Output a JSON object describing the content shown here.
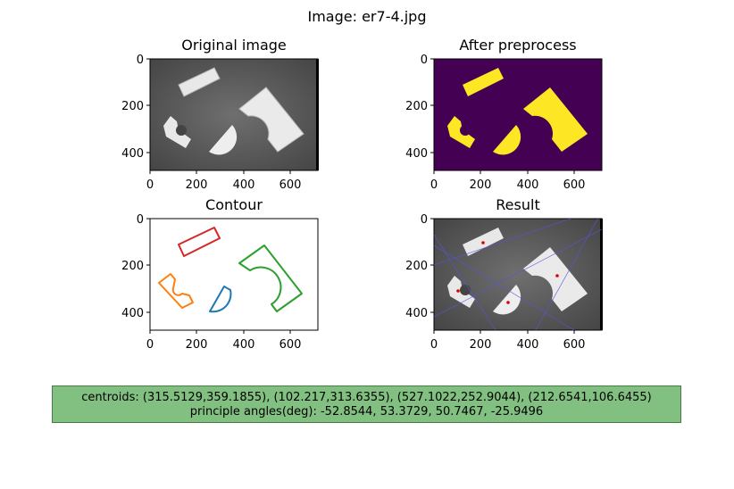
{
  "figure": {
    "suptitle": "Image: er7-4.jpg",
    "panels": [
      {
        "title": "Original image",
        "x_ticks": [
          "0",
          "200",
          "400",
          "600"
        ],
        "y_ticks": [
          "0",
          "200",
          "400"
        ]
      },
      {
        "title": "After preprocess",
        "x_ticks": [
          "0",
          "200",
          "400",
          "600"
        ],
        "y_ticks": [
          "0",
          "200",
          "400"
        ]
      },
      {
        "title": "Contour",
        "x_ticks": [
          "0",
          "200",
          "400",
          "600"
        ],
        "y_ticks": [
          "0",
          "200",
          "400"
        ]
      },
      {
        "title": "Result",
        "x_ticks": [
          "0",
          "200",
          "400",
          "600"
        ],
        "y_ticks": [
          "0",
          "200",
          "400"
        ]
      }
    ],
    "info": {
      "line1": "centroids: (315.5129,359.1855),  (102.217,313.6355),  (527.1022,252.9044),  (212.6541,106.6455)",
      "line2": "principle angles(deg): -52.8544,  53.3729,  50.7467,  -25.9496"
    }
  },
  "colors": {
    "contour_blue": "#1f77b4",
    "contour_orange": "#ff7f0e",
    "contour_green": "#2ca02c",
    "contour_red": "#d62728",
    "mask_background": "#440154",
    "mask_foreground": "#fde725",
    "info_background": "#82c082"
  }
}
